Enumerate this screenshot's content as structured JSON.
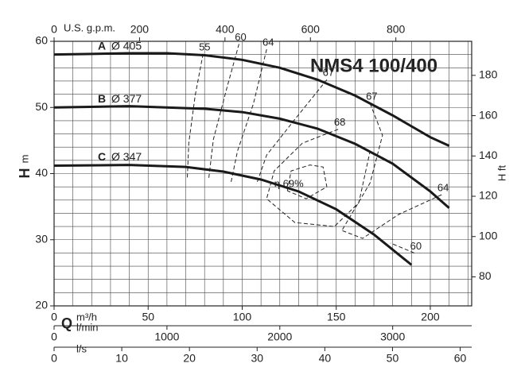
{
  "chart_data": {
    "type": "line",
    "title": "NMS4 100/400",
    "xlim": [
      0,
      222
    ],
    "xticks": [
      0,
      50,
      100,
      150,
      200
    ],
    "xlabel_symbol": "Q",
    "xlabel": "m³/h",
    "ylim": [
      20,
      60
    ],
    "yticks": [
      20,
      30,
      40,
      50,
      60
    ],
    "ylabel_symbol": "H",
    "ylabel": "m",
    "y2lim": [
      65.6,
      196.9
    ],
    "y2ticks": [
      80,
      100,
      120,
      140,
      160,
      180
    ],
    "y2label": "H ft",
    "extra_x_axes": [
      {
        "label": "U.S. g.p.m.",
        "lim": [
          0,
          977.5
        ],
        "ticks": [
          0,
          200,
          400,
          600,
          800
        ],
        "position": "top"
      },
      {
        "label": "l/min",
        "lim": [
          0,
          3700
        ],
        "ticks": [
          0,
          1000,
          2000,
          3000
        ],
        "position": "bottom"
      },
      {
        "label": "l/s",
        "lim": [
          0,
          61.7
        ],
        "ticks": [
          0,
          10,
          20,
          30,
          40,
          50,
          60
        ],
        "position": "bottom"
      }
    ],
    "grid": true,
    "grid_step": {
      "x": 10,
      "y": 2
    },
    "series": [
      {
        "name": "A",
        "diameter": "Ø 405",
        "color": "#1a1a1a",
        "x": [
          0,
          20,
          40,
          60,
          80,
          100,
          120,
          140,
          160,
          180,
          200,
          210
        ],
        "values": [
          58,
          58.1,
          58.2,
          58.2,
          57.9,
          57.2,
          56,
          54.2,
          51.8,
          48.8,
          45.5,
          44.2
        ]
      },
      {
        "name": "B",
        "diameter": "Ø 377",
        "color": "#1a1a1a",
        "x": [
          0,
          40,
          80,
          100,
          120,
          140,
          160,
          180,
          200,
          210
        ],
        "values": [
          50,
          50.2,
          49.8,
          49.3,
          48.3,
          46.8,
          44.5,
          41.5,
          37.3,
          34.8
        ]
      },
      {
        "name": "C",
        "diameter": "Ø 347",
        "color": "#1a1a1a",
        "x": [
          0,
          40,
          70,
          90,
          110,
          130,
          150,
          170,
          190
        ],
        "values": [
          41.2,
          41.3,
          41,
          40.3,
          39.1,
          37.3,
          34.6,
          30.8,
          26.2
        ]
      }
    ],
    "efficiency_curves": [
      {
        "label": "55",
        "x": [
          79.2,
          75,
          71.6,
          70.8
        ],
        "values": [
          58.1,
          51.8,
          44.6,
          39.2
        ]
      },
      {
        "label": "60",
        "x": [
          98.3,
          91.9,
          84.7,
          82.2
        ],
        "values": [
          59.6,
          53,
          45.2,
          39.2
        ]
      },
      {
        "label": "64",
        "x": [
          113,
          106,
          97.5,
          94
        ],
        "values": [
          58.8,
          50.6,
          43.4,
          38.6
        ]
      },
      {
        "label": "67",
        "x": [
          145,
          128,
          113,
          107.6
        ],
        "values": [
          54.2,
          48.2,
          42.8,
          38.4
        ]
      },
      {
        "label": "68",
        "x": [
          151,
          132,
          117,
          113,
          128,
          149,
          162,
          168
        ],
        "values": [
          46.7,
          44.6,
          40.4,
          36.2,
          32.6,
          32,
          35.6,
          43.4
        ]
      },
      {
        "label": "η 69%",
        "x": [
          124,
          126,
          136,
          143,
          145,
          134,
          124
        ],
        "values": [
          37.4,
          40.4,
          41.3,
          41,
          38,
          36.2,
          37.4
        ]
      },
      {
        "label": "67",
        "x": [
          168,
          174.6,
          168,
          153
        ],
        "values": [
          50.6,
          45.8,
          38.6,
          31.4
        ]
      },
      {
        "label": "64",
        "x": [
          206,
          183,
          164,
          153
        ],
        "values": [
          36.8,
          33.8,
          30.2,
          31.4
        ]
      },
      {
        "label": "60",
        "x": [
          191.5,
          178.8
        ],
        "values": [
          28,
          29.5
        ]
      }
    ]
  }
}
